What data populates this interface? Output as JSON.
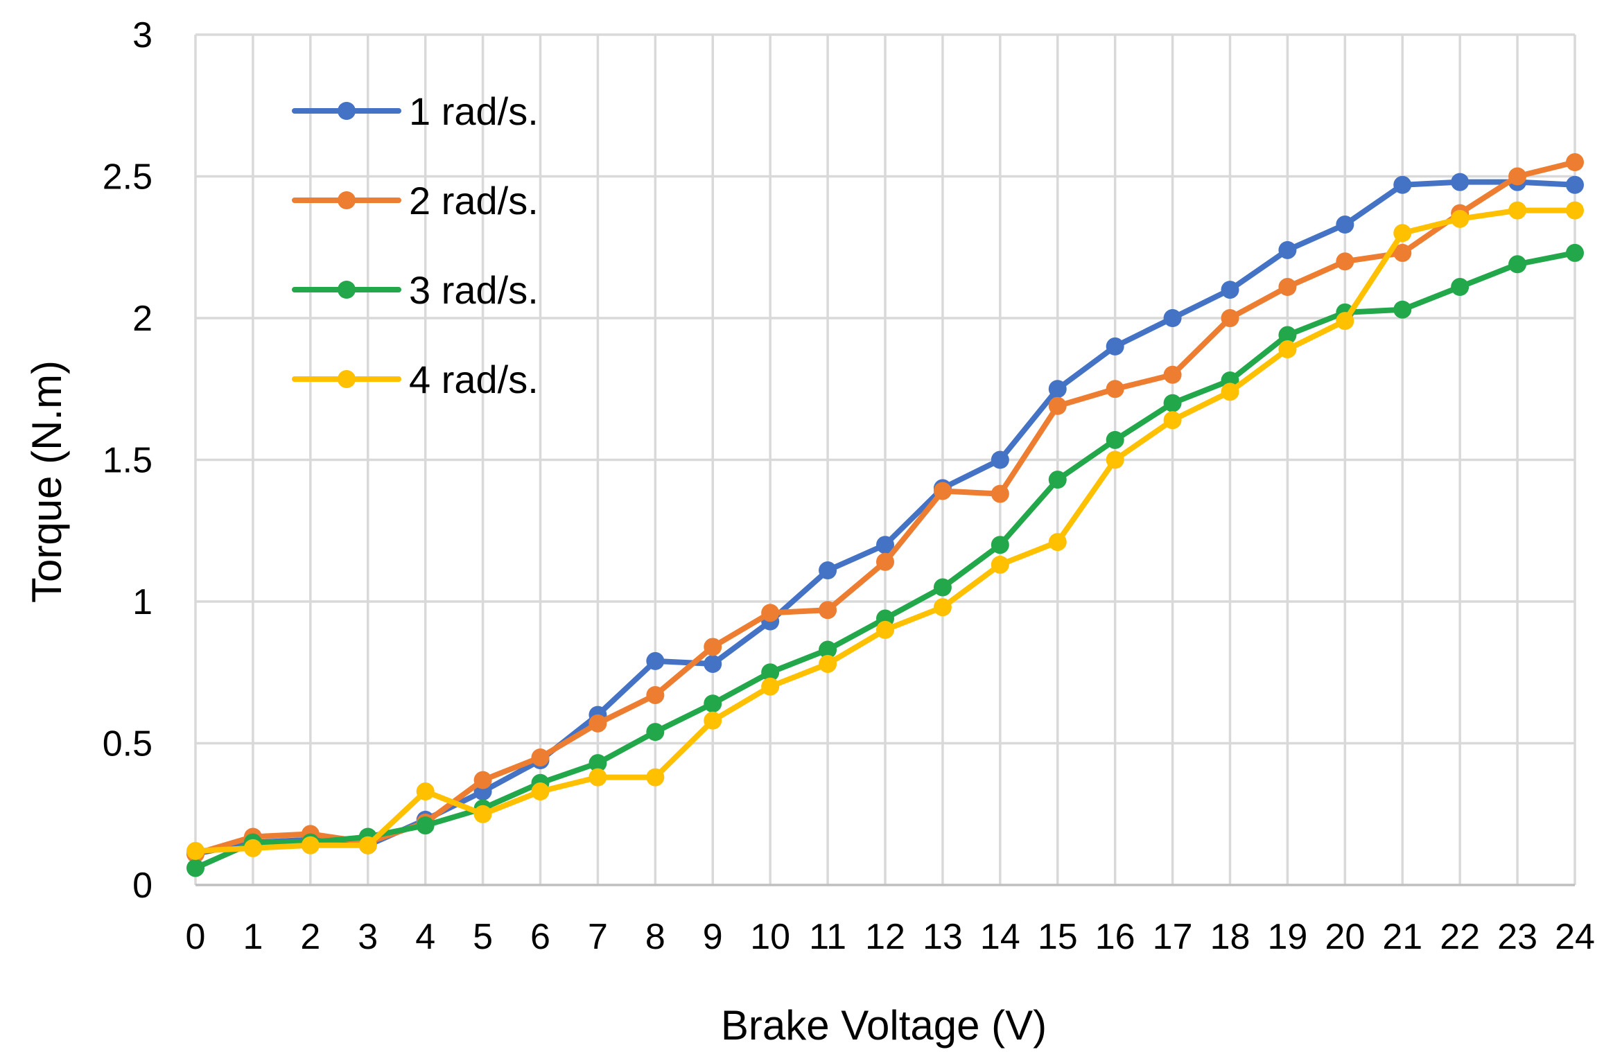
{
  "chart_data": {
    "type": "line",
    "title": "",
    "xlabel": "Brake Voltage (V)",
    "ylabel": "Torque (N.m)",
    "x": [
      0,
      1,
      2,
      3,
      4,
      5,
      6,
      7,
      8,
      9,
      10,
      11,
      12,
      13,
      14,
      15,
      16,
      17,
      18,
      19,
      20,
      21,
      22,
      23,
      24
    ],
    "x_tick_labels": [
      "0",
      "1",
      "2",
      "3",
      "4",
      "5",
      "6",
      "7",
      "8",
      "9",
      "10",
      "11",
      "12",
      "13",
      "14",
      "15",
      "16",
      "17",
      "18",
      "19",
      "20",
      "21",
      "22",
      "23",
      "24"
    ],
    "y_tick_values": [
      0,
      0.5,
      1,
      1.5,
      2,
      2.5,
      3
    ],
    "y_tick_labels": [
      "0",
      "0.5",
      "1",
      "1.5",
      "2",
      "2.5",
      "3"
    ],
    "xlim": [
      0,
      24
    ],
    "ylim": [
      0,
      3
    ],
    "grid": true,
    "legend_position": "top-left",
    "series": [
      {
        "name": "1 rad/s.",
        "color": "#4472c4",
        "values": [
          0.11,
          0.15,
          0.16,
          0.14,
          0.23,
          0.33,
          0.44,
          0.6,
          0.79,
          0.78,
          0.93,
          1.11,
          1.2,
          1.4,
          1.5,
          1.75,
          1.9,
          2.0,
          2.1,
          2.24,
          2.33,
          2.47,
          2.48,
          2.48,
          2.47
        ]
      },
      {
        "name": "2 rad/s.",
        "color": "#ed7d31",
        "values": [
          0.11,
          0.17,
          0.18,
          0.15,
          0.22,
          0.37,
          0.45,
          0.57,
          0.67,
          0.84,
          0.96,
          0.97,
          1.14,
          1.39,
          1.38,
          1.69,
          1.75,
          1.8,
          2.0,
          2.11,
          2.2,
          2.23,
          2.37,
          2.5,
          2.55
        ]
      },
      {
        "name": "3 rad/s.",
        "color": "#22a84a",
        "values": [
          0.06,
          0.15,
          0.15,
          0.17,
          0.21,
          0.27,
          0.36,
          0.43,
          0.54,
          0.64,
          0.75,
          0.83,
          0.94,
          1.05,
          1.2,
          1.43,
          1.57,
          1.7,
          1.78,
          1.94,
          2.02,
          2.03,
          2.11,
          2.19,
          2.23
        ]
      },
      {
        "name": "4 rad/s.",
        "color": "#ffc000",
        "values": [
          0.12,
          0.13,
          0.14,
          0.14,
          0.33,
          0.25,
          0.33,
          0.38,
          0.38,
          0.58,
          0.7,
          0.78,
          0.9,
          0.98,
          1.13,
          1.21,
          1.5,
          1.64,
          1.74,
          1.89,
          1.99,
          2.3,
          2.35,
          2.38,
          2.38
        ]
      }
    ]
  }
}
